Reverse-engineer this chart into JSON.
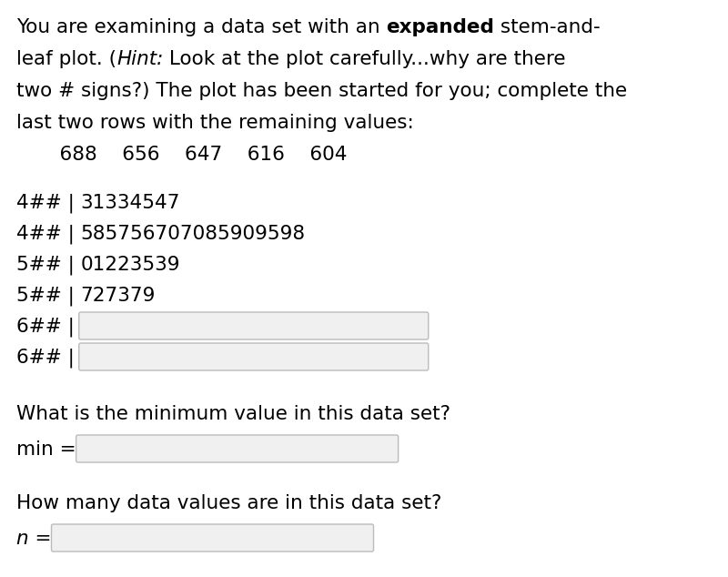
{
  "background_color": "#ffffff",
  "text_color": "#000000",
  "box_edge_color": "#bbbbbb",
  "box_face_color": "#f0f0f0",
  "font_size": 15.5,
  "line1_normal": "You are examining a data set with an ",
  "line1_bold": "expanded",
  "line1_end": " stem-and-",
  "line2_start": "leaf plot. (",
  "line2_italic": "Hint:",
  "line2_end": " Look at the plot carefully...why are there",
  "line3": "two # signs?) The plot has been started for you; complete the",
  "line4": "last two rows with the remaining values:",
  "line5": "    688    656    647    616    604",
  "stem_rows": [
    {
      "stem": "4## | ",
      "leaves": "31334547",
      "box": false
    },
    {
      "stem": "4## | ",
      "leaves": "585756707085909598",
      "box": false
    },
    {
      "stem": "5## | ",
      "leaves": "01223539",
      "box": false
    },
    {
      "stem": "5## | ",
      "leaves": "727379",
      "box": false
    },
    {
      "stem": "6## | ",
      "leaves": "",
      "box": true
    },
    {
      "stem": "6## | ",
      "leaves": "",
      "box": true
    }
  ],
  "q1": "What is the minimum value in this data set?",
  "label_min": "min =",
  "q2": "How many data values are in this data set?",
  "label_n": "n ="
}
